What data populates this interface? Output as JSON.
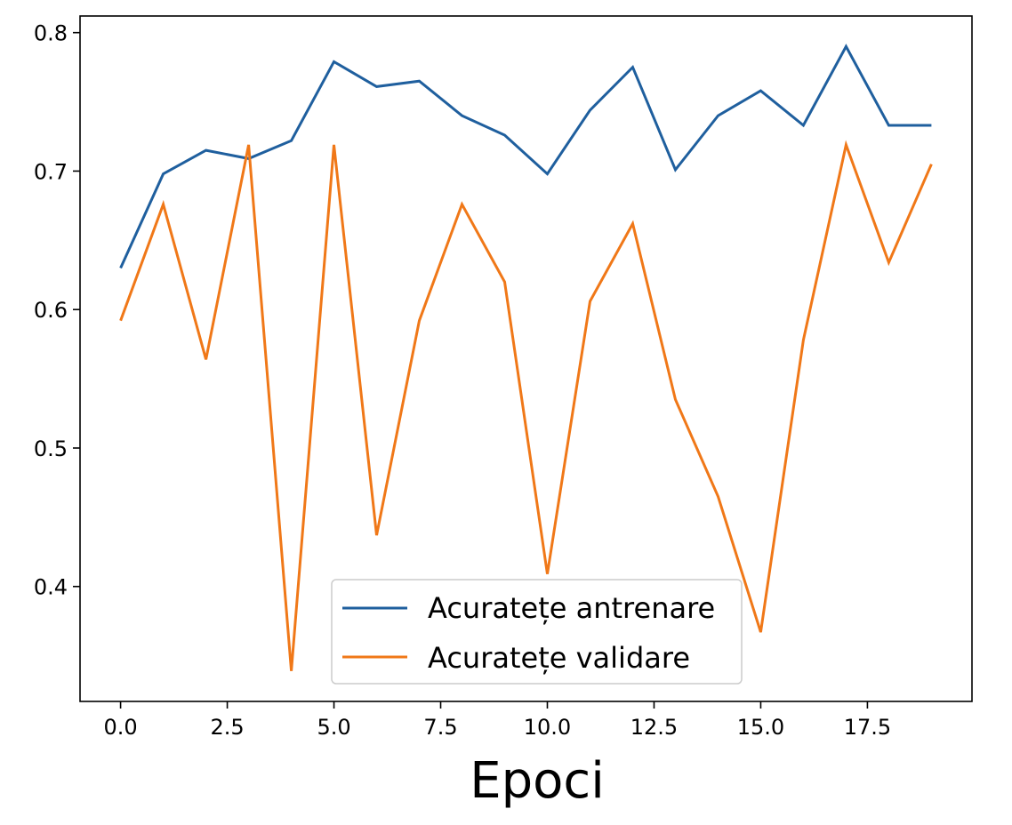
{
  "chart_data": {
    "type": "line",
    "title": "",
    "xlabel": "Epoci",
    "ylabel": "",
    "xlim": [
      -0.95,
      19.95
    ],
    "ylim": [
      0.317,
      0.812
    ],
    "x_ticks": [
      0.0,
      2.5,
      5.0,
      7.5,
      10.0,
      12.5,
      15.0,
      17.5
    ],
    "x_tick_labels": [
      "0.0",
      "2.5",
      "5.0",
      "7.5",
      "10.0",
      "12.5",
      "15.0",
      "17.5"
    ],
    "y_ticks": [
      0.4,
      0.5,
      0.6,
      0.7,
      0.8
    ],
    "y_tick_labels": [
      "0.4",
      "0.5",
      "0.6",
      "0.7",
      "0.8"
    ],
    "grid": false,
    "legend_position": "lower-center",
    "x": [
      0,
      1,
      2,
      3,
      4,
      5,
      6,
      7,
      8,
      9,
      10,
      11,
      12,
      13,
      14,
      15,
      16,
      17,
      18,
      19
    ],
    "series": [
      {
        "name": "Acuratețe antrenare",
        "color": "#1f5f9e",
        "values": [
          0.63,
          0.698,
          0.715,
          0.709,
          0.722,
          0.779,
          0.761,
          0.765,
          0.74,
          0.726,
          0.698,
          0.744,
          0.775,
          0.701,
          0.74,
          0.758,
          0.733,
          0.79,
          0.733,
          0.733
        ]
      },
      {
        "name": "Acuratețe validare",
        "color": "#f07818",
        "values": [
          0.592,
          0.676,
          0.564,
          0.719,
          0.339,
          0.719,
          0.437,
          0.592,
          0.676,
          0.62,
          0.409,
          0.606,
          0.662,
          0.535,
          0.465,
          0.367,
          0.578,
          0.719,
          0.634,
          0.705
        ]
      }
    ]
  }
}
